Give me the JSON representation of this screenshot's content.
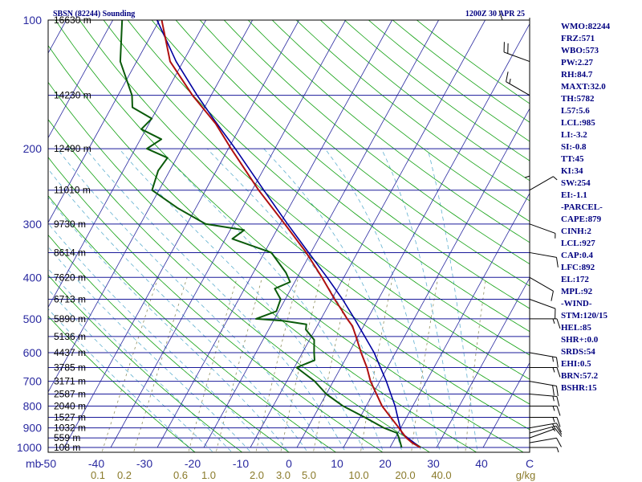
{
  "header": {
    "station": "SBSN (82244) Sounding",
    "time": "1200Z 30 APR 25"
  },
  "colors": {
    "isobar": "#1a1a9a",
    "isotherm": "#2a2aa0",
    "dry_adiabat": "#10a010",
    "moist_adiabat": "#60b0d0",
    "mixing_ratio": "#909060",
    "temperature": "#b01010",
    "dewpoint": "#0a5a0a",
    "parcel": "#0000a0",
    "wind": "#000000",
    "index_text": "#000080"
  },
  "chart_data": {
    "type": "skew-t log-p",
    "title": "SBSN (82244) Sounding",
    "valid_time": "1200Z 30 APR 25",
    "y_axis": {
      "scale": "log",
      "range_hpa": [
        1000,
        100
      ],
      "tick_labels": [
        "100",
        "200",
        "300",
        "400",
        "500",
        "600",
        "700",
        "800",
        "900",
        "1000"
      ]
    },
    "x_axis": {
      "unit_label": "mb",
      "range_c": [
        -50,
        50
      ],
      "tick_labels": [
        "-50",
        "-40",
        "-30",
        "-20",
        "-10",
        "0",
        "10",
        "20",
        "30",
        "40",
        "C"
      ]
    },
    "mixing_ratio_labels": [
      "0.1",
      "0.2",
      "0.6",
      "1.0",
      "2.0",
      "3.0",
      "5.0",
      "10.0",
      "20.0",
      "40.0",
      "g/kg"
    ],
    "height_labels": [
      {
        "p": 100,
        "label": "16630 m"
      },
      {
        "p": 150,
        "label": "14230 m"
      },
      {
        "p": 200,
        "label": "12490 m"
      },
      {
        "p": 250,
        "label": "11010 m"
      },
      {
        "p": 300,
        "label": "9730 m"
      },
      {
        "p": 350,
        "label": "8614 m"
      },
      {
        "p": 400,
        "label": "7620 m"
      },
      {
        "p": 450,
        "label": "6713 m"
      },
      {
        "p": 500,
        "label": "5890 m"
      },
      {
        "p": 550,
        "label": "5136 m"
      },
      {
        "p": 600,
        "label": "4437 m"
      },
      {
        "p": 650,
        "label": "3785 m"
      },
      {
        "p": 700,
        "label": "3171 m"
      },
      {
        "p": 750,
        "label": "2587 m"
      },
      {
        "p": 800,
        "label": "2040 m"
      },
      {
        "p": 850,
        "label": "1527 m"
      },
      {
        "p": 900,
        "label": "1032 m"
      },
      {
        "p": 950,
        "label": "559 m"
      },
      {
        "p": 1000,
        "label": "108 m"
      }
    ],
    "temperature": [
      {
        "p": 1000,
        "t": 26.5
      },
      {
        "p": 975,
        "t": 24.2
      },
      {
        "p": 950,
        "t": 22.4
      },
      {
        "p": 925,
        "t": 21.0
      },
      {
        "p": 900,
        "t": 19.6
      },
      {
        "p": 850,
        "t": 16.6
      },
      {
        "p": 800,
        "t": 13.4
      },
      {
        "p": 700,
        "t": 8.0
      },
      {
        "p": 650,
        "t": 5.6
      },
      {
        "p": 600,
        "t": 2.6
      },
      {
        "p": 550,
        "t": -0.4
      },
      {
        "p": 520,
        "t": -2.4
      },
      {
        "p": 500,
        "t": -4.4
      },
      {
        "p": 475,
        "t": -6.8
      },
      {
        "p": 450,
        "t": -9.4
      },
      {
        "p": 400,
        "t": -14.7
      },
      {
        "p": 350,
        "t": -21.0
      },
      {
        "p": 300,
        "t": -29.0
      },
      {
        "p": 250,
        "t": -38.6
      },
      {
        "p": 200,
        "t": -49.4
      },
      {
        "p": 175,
        "t": -55.6
      },
      {
        "p": 150,
        "t": -64.0
      },
      {
        "p": 125,
        "t": -72.8
      },
      {
        "p": 100,
        "t": -79.5
      }
    ],
    "dewpoint": [
      {
        "p": 1000,
        "t": 22.5
      },
      {
        "p": 950,
        "t": 20.8
      },
      {
        "p": 925,
        "t": 19.8
      },
      {
        "p": 900,
        "t": 16.4
      },
      {
        "p": 850,
        "t": 11.0
      },
      {
        "p": 800,
        "t": 5.0
      },
      {
        "p": 750,
        "t": 0.0
      },
      {
        "p": 700,
        "t": -4.0
      },
      {
        "p": 650,
        "t": -9.5
      },
      {
        "p": 625,
        "t": -6.5
      },
      {
        "p": 600,
        "t": -7.5
      },
      {
        "p": 560,
        "t": -9.0
      },
      {
        "p": 530,
        "t": -12.0
      },
      {
        "p": 515,
        "t": -12.5
      },
      {
        "p": 505,
        "t": -18.0
      },
      {
        "p": 500,
        "t": -24.0
      },
      {
        "p": 480,
        "t": -20.5
      },
      {
        "p": 450,
        "t": -21.0
      },
      {
        "p": 425,
        "t": -23.5
      },
      {
        "p": 410,
        "t": -21.0
      },
      {
        "p": 390,
        "t": -23.0
      },
      {
        "p": 350,
        "t": -28.5
      },
      {
        "p": 325,
        "t": -38.5
      },
      {
        "p": 310,
        "t": -37.0
      },
      {
        "p": 300,
        "t": -46.0
      },
      {
        "p": 275,
        "t": -54.0
      },
      {
        "p": 250,
        "t": -61.5
      },
      {
        "p": 225,
        "t": -62.5
      },
      {
        "p": 210,
        "t": -62.0
      },
      {
        "p": 200,
        "t": -67.5
      },
      {
        "p": 190,
        "t": -65.5
      },
      {
        "p": 180,
        "t": -71.0
      },
      {
        "p": 170,
        "t": -70.0
      },
      {
        "p": 160,
        "t": -75.5
      },
      {
        "p": 150,
        "t": -77.0
      },
      {
        "p": 125,
        "t": -83.5
      },
      {
        "p": 100,
        "t": -88.0
      }
    ],
    "parcel": [
      {
        "p": 1000,
        "t": 26.5
      },
      {
        "p": 927,
        "t": 20.9
      },
      {
        "p": 900,
        "t": 19.9
      },
      {
        "p": 850,
        "t": 18.1
      },
      {
        "p": 800,
        "t": 16.2
      },
      {
        "p": 700,
        "t": 11.4
      },
      {
        "p": 600,
        "t": 5.4
      },
      {
        "p": 500,
        "t": -2.8
      },
      {
        "p": 450,
        "t": -7.7
      },
      {
        "p": 400,
        "t": -13.6
      },
      {
        "p": 350,
        "t": -20.5
      },
      {
        "p": 300,
        "t": -28.4
      },
      {
        "p": 250,
        "t": -37.5
      },
      {
        "p": 200,
        "t": -48.5
      },
      {
        "p": 172,
        "t": -56.2
      },
      {
        "p": 150,
        "t": -63.0
      },
      {
        "p": 125,
        "t": -71.5
      },
      {
        "p": 100,
        "t": -80.5
      }
    ],
    "wind_profile": [
      {
        "p": 1000,
        "dir": 90,
        "spd": 5
      },
      {
        "p": 975,
        "dir": 80,
        "spd": 10
      },
      {
        "p": 950,
        "dir": 70,
        "spd": 10
      },
      {
        "p": 925,
        "dir": 75,
        "spd": 15
      },
      {
        "p": 900,
        "dir": 80,
        "spd": 15
      },
      {
        "p": 850,
        "dir": 90,
        "spd": 15
      },
      {
        "p": 800,
        "dir": 90,
        "spd": 15
      },
      {
        "p": 750,
        "dir": 95,
        "spd": 15
      },
      {
        "p": 700,
        "dir": 100,
        "spd": 20
      },
      {
        "p": 650,
        "dir": 90,
        "spd": 15
      },
      {
        "p": 600,
        "dir": 100,
        "spd": 15
      },
      {
        "p": 500,
        "dir": 90,
        "spd": 15
      },
      {
        "p": 450,
        "dir": 110,
        "spd": 10
      },
      {
        "p": 400,
        "dir": 120,
        "spd": 10
      },
      {
        "p": 350,
        "dir": 100,
        "spd": 10
      },
      {
        "p": 300,
        "dir": 110,
        "spd": 5
      },
      {
        "p": 250,
        "dir": 60,
        "spd": 5
      },
      {
        "p": 200,
        "dir": 180,
        "spd": 5
      },
      {
        "p": 150,
        "dir": 300,
        "spd": 15
      },
      {
        "p": 125,
        "dir": 290,
        "spd": 20
      },
      {
        "p": 100,
        "dir": 270,
        "spd": 10
      }
    ],
    "indices": [
      "WMO:82244",
      "FRZ:571",
      "WBO:573",
      "PW:2.27",
      "RH:84.7",
      "MAXT:32.0",
      "TH:5782",
      "L57:5.6",
      "LCL:985",
      "LI:-3.2",
      "SI:-0.8",
      "TT:45",
      "KI:34",
      "SW:254",
      "EI:-1.1",
      "-PARCEL-",
      "CAPE:879",
      "CINH:2",
      "LCL:927",
      "CAP:0.4",
      "LFC:892",
      "EL:172",
      "MPL:92",
      "-WIND-",
      "STM:120/15",
      "HEL:85",
      "SHR+:0.0",
      "SRDS:54",
      "EHI:0.5",
      "BRN:57.2",
      "BSHR:15"
    ]
  }
}
